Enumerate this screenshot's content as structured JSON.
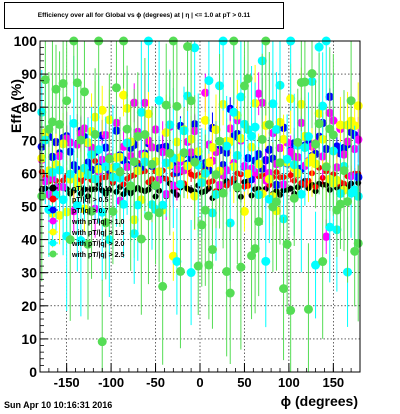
{
  "header": {
    "title": "Efficiency over all for Global vs ϕ (degrees) at | η | <= 1.0 at pT > 0.11"
  },
  "footer": {
    "timestamp": "Sun Apr 10 10:16:31 2016"
  },
  "chart_data": {
    "type": "scatter",
    "title": "Efficiency over all for Global vs ϕ (degrees) at | η | <= 1.0 at pT > 0.11",
    "xlabel": "ϕ (degrees)",
    "ylabel": "EffA (%)",
    "xlim": [
      -180,
      180
    ],
    "ylim": [
      0,
      100
    ],
    "x_ticks": [
      -150,
      -100,
      -50,
      0,
      50,
      100,
      150
    ],
    "y_ticks": [
      0,
      10,
      20,
      30,
      40,
      50,
      60,
      70,
      80,
      90,
      100
    ],
    "grid": true,
    "legend_position": "center-left",
    "bins": 90,
    "series": [
      {
        "name": "pT/|q| > 0.11",
        "color": "#000000",
        "mean": 55.5,
        "spread": 1.5,
        "err": 1.5
      },
      {
        "name": "pT/|q| > 0.5",
        "color": "#ff0000",
        "mean": 59.0,
        "spread": 1.8,
        "err": 2.5
      },
      {
        "name": "pT/|q| > 0.7",
        "color": "#0000ff",
        "mean": 66.0,
        "spread": 4.5,
        "err": 4.0
      },
      {
        "name": "pT/|q| > 1.0",
        "color": "#ff00ff",
        "mean": 68.0,
        "spread": 8.0,
        "err": 8.0
      },
      {
        "name": "pT/|q| > 1.5",
        "color": "#ffff00",
        "mean": 65.0,
        "spread": 9.0,
        "err": 10.0
      },
      {
        "name": "pT/|q| > 2.0",
        "color": "#00ffff",
        "mean": 60.0,
        "spread": 18.0,
        "err": 20.0
      },
      {
        "name": "pT/|q| > 2.5",
        "color": "#55dd55",
        "mean": 60.0,
        "spread": 20.0,
        "err": 22.0
      }
    ],
    "legend_entries": [
      "pT/|q| > 0.11",
      "pT/|q| > 0.5",
      "pT/|q| > 0.7",
      "with pT/|q| > 1.0",
      "with pT/|q| > 1.5",
      "with pT/|q| > 2.0",
      "with pT/|q| > 2.5"
    ]
  }
}
